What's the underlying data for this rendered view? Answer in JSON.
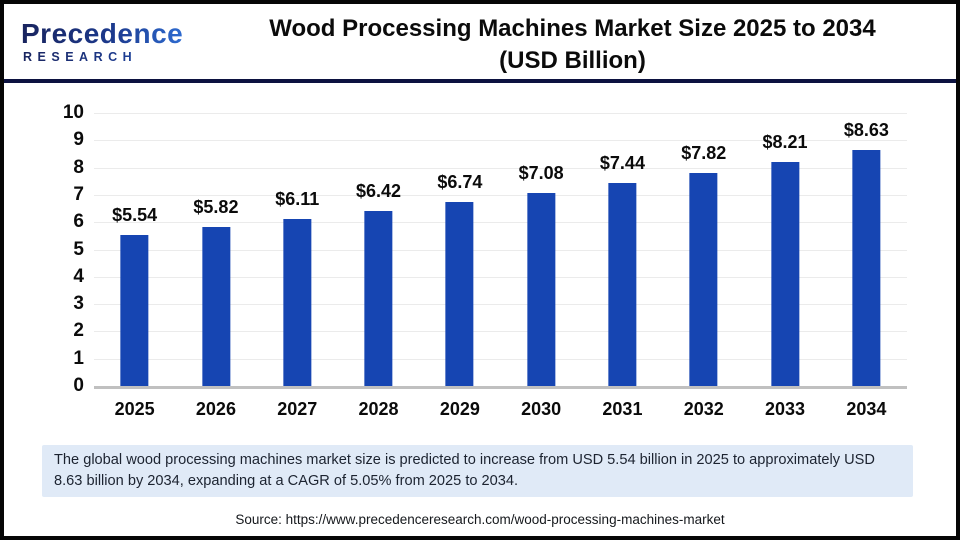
{
  "header": {
    "logo_line1": "Precedence",
    "logo_line2": "RESEARCH",
    "title_line1": "Wood Processing Machines Market Size 2025 to 2034",
    "title_line2": "(USD Billion)"
  },
  "chart_data": {
    "type": "bar",
    "title": "Wood Processing Machines Market Size 2025 to 2034 (USD Billion)",
    "categories": [
      "2025",
      "2026",
      "2027",
      "2028",
      "2029",
      "2030",
      "2031",
      "2032",
      "2033",
      "2034"
    ],
    "values": [
      5.54,
      5.82,
      6.11,
      6.42,
      6.74,
      7.08,
      7.44,
      7.82,
      8.21,
      8.63
    ],
    "value_labels": [
      "$5.54",
      "$5.82",
      "$6.11",
      "$6.42",
      "$6.74",
      "$7.08",
      "$7.44",
      "$7.82",
      "$8.21",
      "$8.63"
    ],
    "xlabel": "",
    "ylabel": "",
    "ylim": [
      0,
      10
    ],
    "ytick_step": 1,
    "grid": true,
    "legend_position": "none",
    "bar_color": "#1645b2"
  },
  "footer": {
    "summary": "The global wood processing machines market size is predicted to increase from USD 5.54 billion in 2025 to approximately USD 8.63 billion by 2034, expanding at a CAGR of 5.05% from 2025 to 2034.",
    "source": "Source: https://www.precedenceresearch.com/wood-processing-machines-market"
  },
  "colors": {
    "bar": "#1645b2",
    "divider": "#0c1240",
    "summary_background": "#e0eaf7",
    "gridline": "#ebebeb",
    "axis_baseline": "#c0c0c0",
    "logo_dark": "#19245e",
    "logo_light": "#2f6fd6"
  }
}
